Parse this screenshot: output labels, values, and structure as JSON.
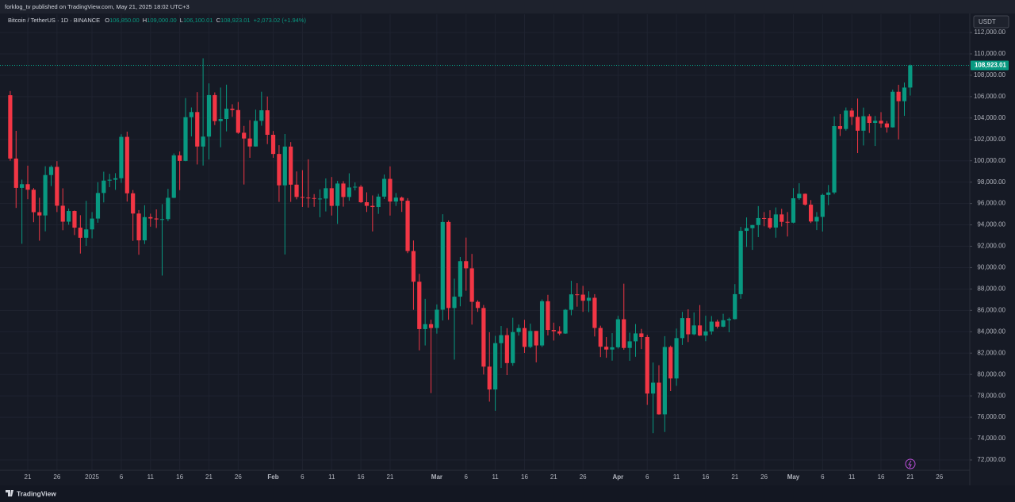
{
  "top_bar": "forklog_tv published on TradingView.com, May 21, 2025 18:02 UTC+3",
  "footer": "TradingView",
  "chart_data": {
    "type": "candlestick",
    "title": "Bitcoin / TetherUS · 1D · BINANCE",
    "legend": {
      "o_label": "O",
      "open": "106,850.00",
      "h_label": "H",
      "high": "109,000.00",
      "l_label": "L",
      "low": "106,100.01",
      "c_label": "C",
      "close": "108,923.01",
      "change": "+2,073.02 (+1.94%)"
    },
    "currency": "USDT",
    "last_price": {
      "value": 108923.01,
      "label": "108,923.01"
    },
    "up_color": "#089981",
    "down_color": "#f23645",
    "grid": true,
    "categories": [
      null,
      null,
      null,
      "21",
      null,
      null,
      null,
      null,
      "26",
      null,
      null,
      null,
      null,
      null,
      "2025",
      null,
      null,
      null,
      null,
      "6",
      null,
      null,
      null,
      null,
      "11",
      null,
      null,
      null,
      null,
      "16",
      null,
      null,
      null,
      null,
      "21",
      null,
      null,
      null,
      null,
      "26",
      null,
      null,
      null,
      null,
      null,
      "Feb",
      null,
      null,
      null,
      null,
      "6",
      null,
      null,
      null,
      null,
      "11",
      null,
      null,
      null,
      null,
      "16",
      null,
      null,
      null,
      null,
      "21",
      null,
      null,
      null,
      null,
      null,
      null,
      null,
      "Mar",
      null,
      null,
      null,
      null,
      "6",
      null,
      null,
      null,
      null,
      "11",
      null,
      null,
      null,
      null,
      "16",
      null,
      null,
      null,
      null,
      "21",
      null,
      null,
      null,
      null,
      "26",
      null,
      null,
      null,
      null,
      null,
      "Apr",
      null,
      null,
      null,
      null,
      "6",
      null,
      null,
      null,
      null,
      "11",
      null,
      null,
      null,
      null,
      "16",
      null,
      null,
      null,
      null,
      "21",
      null,
      null,
      null,
      null,
      "26",
      null,
      null,
      null,
      null,
      "May",
      null,
      null,
      null,
      null,
      "6",
      null,
      null,
      null,
      null,
      "11",
      null,
      null,
      null,
      null,
      "16",
      null,
      null,
      null,
      null,
      "21",
      null,
      null,
      null,
      null,
      "26"
    ],
    "open": [
      106133,
      100204,
      97461,
      97805,
      97291,
      95186,
      94881,
      98663,
      99429,
      95792,
      94299,
      95300,
      93738,
      92792,
      93576,
      94591,
      96984,
      98142,
      98226,
      98364,
      102235,
      96954,
      95060,
      92552,
      94726,
      94599,
      94511,
      94540,
      96534,
      100505,
      99987,
      104078,
      104556,
      101331,
      102260,
      106143,
      103706,
      103910,
      104870,
      104746,
      102620,
      102082,
      101335,
      103733,
      104722,
      102429,
      100636,
      97700,
      101328,
      97763,
      96612,
      96554,
      96506,
      96444,
      96462,
      97430,
      95779,
      97869,
      96608,
      97500,
      97569,
      96118,
      95780,
      95671,
      96644,
      98305,
      96181,
      96551,
      96258,
      91552,
      88680,
      84250,
      84709,
      84349,
      86064,
      94270,
      86220,
      87281,
      90606,
      89931,
      86801,
      86222,
      80734,
      78595,
      82932,
      83680,
      81067,
      83969,
      84344,
      82580,
      84075,
      82718,
      86854,
      84167,
      84043,
      83832,
      86054,
      87498,
      87471,
      86900,
      87177,
      84353,
      82597,
      82334,
      82548,
      85169,
      82485,
      83102,
      83843,
      83504,
      78214,
      79235,
      76271,
      82573,
      79626,
      83404,
      85276,
      83760,
      84591,
      83643,
      84030,
      84947,
      84474,
      85077,
      85179,
      87516,
      93442,
      93691,
      93980,
      94638,
      94628,
      93750,
      94978,
      94284,
      94207,
      96492,
      96910,
      95891,
      94315,
      94748,
      96802,
      97032,
      103241,
      102971,
      104696,
      104106,
      102812,
      104169,
      103539,
      103744,
      103489,
      103126,
      106454,
      105573,
      106850,
      null,
      null,
      null,
      null,
      null
    ],
    "high": [
      106524,
      102800,
      98233,
      99540,
      97448,
      96539,
      99487,
      99569,
      99963,
      97420,
      95525,
      95350,
      94903,
      96250,
      95200,
      98000,
      98976,
      98778,
      98838,
      102480,
      102724,
      97259,
      95382,
      95837,
      95050,
      95450,
      95940,
      97371,
      100681,
      100873,
      105865,
      104988,
      106422,
      109588,
      107240,
      106394,
      106850,
      107120,
      105286,
      105500,
      103260,
      103800,
      104782,
      106457,
      106012,
      102783,
      101456,
      102500,
      101745,
      99000,
      99120,
      100137,
      96880,
      97323,
      98345,
      98478,
      98119,
      98092,
      98826,
      97972,
      97725,
      97046,
      96753,
      96899,
      98711,
      99475,
      96980,
      96650,
      96500,
      92540,
      89414,
      87078,
      85120,
      86558,
      95000,
      94416,
      88967,
      90998,
      92810,
      91283,
      86940,
      86500,
      83955,
      83617,
      84539,
      84336,
      85309,
      84672,
      85117,
      84756,
      84075,
      87021,
      87453,
      84850,
      84513,
      86129,
      88765,
      88542,
      88292,
      87786,
      87515,
      84567,
      83505,
      83870,
      85487,
      88500,
      83909,
      84720,
      84266,
      83705,
      81119,
      80867,
      83588,
      82700,
      84300,
      85856,
      86100,
      85800,
      86496,
      85500,
      85470,
      85132,
      85681,
      85320,
      88460,
      93817,
      94696,
      94000,
      95758,
      95199,
      95369,
      95630,
      95500,
      95200,
      97437,
      97895,
      96943,
      96318,
      95199,
      96920,
      97732,
      104145,
      104361,
      104984,
      104937,
      105819,
      104976,
      104365,
      104192,
      104550,
      103718,
      106660,
      107108,
      107320,
      109000,
      null,
      null,
      null,
      null,
      null
    ],
    "low": [
      100000,
      95587,
      92232,
      96398,
      94250,
      92520,
      93396,
      97632,
      95199,
      93500,
      94014,
      93048,
      91317,
      92033,
      92743,
      94201,
      96100,
      97533,
      97276,
      97929,
      96181,
      92500,
      91203,
      92206,
      93832,
      93711,
      89256,
      94346,
      96500,
      97256,
      99950,
      102277,
      99651,
      99550,
      100119,
      103339,
      101262,
      102750,
      104106,
      102520,
      97777,
      100272,
      101328,
      103278,
      101560,
      100279,
      96150,
      91231,
      96151,
      96388,
      95676,
      95620,
      95688,
      94713,
      95256,
      94876,
      94088,
      95705,
      96252,
      97223,
      96055,
      95205,
      93388,
      95029,
      96415,
      94871,
      95770,
      95213,
      91350,
      86050,
      82256,
      82716,
      78258,
      83824,
      85050,
      85117,
      81390,
      86379,
      87836,
      84667,
      85862,
      80000,
      77459,
      76606,
      80607,
      79939,
      80818,
      83639,
      82017,
      82457,
      81134,
      82570,
      83655,
      83175,
      83674,
      83800,
      85541,
      86346,
      85861,
      85837,
      83557,
      81634,
      81565,
      81293,
      82429,
      82320,
      81282,
      81659,
      82379,
      77153,
      74508,
      76239,
      74620,
      78456,
      78936,
      82769,
      83034,
      83678,
      83600,
      83112,
      83736,
      84303,
      84418,
      83949,
      85144,
      87076,
      91935,
      91660,
      92855,
      93870,
      93602,
      92800,
      93853,
      92910,
      94153,
      96350,
      95800,
      94171,
      93514,
      93377,
      95846,
      96876,
      102315,
      102818,
      103346,
      100718,
      101429,
      102602,
      101383,
      103100,
      102634,
      103105,
      102000,
      104200,
      106100.01,
      null,
      null,
      null,
      null,
      null
    ],
    "close": [
      100204,
      97461,
      97805,
      97291,
      95186,
      94881,
      98663,
      99429,
      95792,
      94299,
      95300,
      93738,
      92792,
      93576,
      94591,
      96984,
      98142,
      98226,
      98364,
      102235,
      96954,
      95060,
      92552,
      94726,
      94599,
      94511,
      94540,
      96534,
      100505,
      99987,
      104078,
      104556,
      101331,
      102260,
      106143,
      103706,
      103910,
      104870,
      104746,
      102620,
      102082,
      101335,
      103733,
      104722,
      102429,
      100636,
      97700,
      101328,
      97763,
      96612,
      96554,
      96506,
      96444,
      96462,
      97430,
      95779,
      97869,
      96608,
      97500,
      97569,
      96118,
      95780,
      95671,
      96644,
      98305,
      96181,
      96551,
      96258,
      91552,
      88680,
      84250,
      84709,
      84349,
      86064,
      94270,
      86220,
      87281,
      90606,
      89931,
      86801,
      86222,
      80734,
      78595,
      82932,
      83680,
      81067,
      83969,
      84344,
      82580,
      84075,
      82718,
      86854,
      84167,
      84043,
      83832,
      86054,
      87498,
      87471,
      86900,
      87177,
      84353,
      82597,
      82334,
      82548,
      85169,
      82485,
      83102,
      83843,
      83504,
      78214,
      79235,
      76271,
      82573,
      79626,
      83404,
      85276,
      83760,
      84591,
      83643,
      84030,
      84947,
      84474,
      85077,
      85179,
      87516,
      93442,
      93691,
      93980,
      94638,
      94628,
      93750,
      94978,
      94284,
      94207,
      96492,
      96910,
      95891,
      94315,
      94748,
      96802,
      97032,
      103241,
      102971,
      104696,
      104106,
      102812,
      104169,
      103539,
      103744,
      103489,
      103126,
      106454,
      105573,
      106850,
      108923.01,
      null,
      null,
      null,
      null,
      null
    ],
    "ylim": [
      71035,
      113707
    ],
    "yticks": [
      {
        "value": 72000,
        "label": "72,000.00"
      },
      {
        "value": 74000,
        "label": "74,000.00"
      },
      {
        "value": 76000,
        "label": "76,000.00"
      },
      {
        "value": 78000,
        "label": "78,000.00"
      },
      {
        "value": 80000,
        "label": "80,000.00"
      },
      {
        "value": 82000,
        "label": "82,000.00"
      },
      {
        "value": 84000,
        "label": "84,000.00"
      },
      {
        "value": 86000,
        "label": "86,000.00"
      },
      {
        "value": 88000,
        "label": "88,000.00"
      },
      {
        "value": 90000,
        "label": "90,000.00"
      },
      {
        "value": 92000,
        "label": "92,000.00"
      },
      {
        "value": 94000,
        "label": "94,000.00"
      },
      {
        "value": 96000,
        "label": "96,000.00"
      },
      {
        "value": 98000,
        "label": "98,000.00"
      },
      {
        "value": 100000,
        "label": "100,000.00"
      },
      {
        "value": 102000,
        "label": "102,000.00"
      },
      {
        "value": 104000,
        "label": "104,000.00"
      },
      {
        "value": 106000,
        "label": "106,000.00"
      },
      {
        "value": 108000,
        "label": "108,000.00"
      },
      {
        "value": 110000,
        "label": "110,000.00"
      },
      {
        "value": 112000,
        "label": "112,000.00"
      }
    ]
  }
}
